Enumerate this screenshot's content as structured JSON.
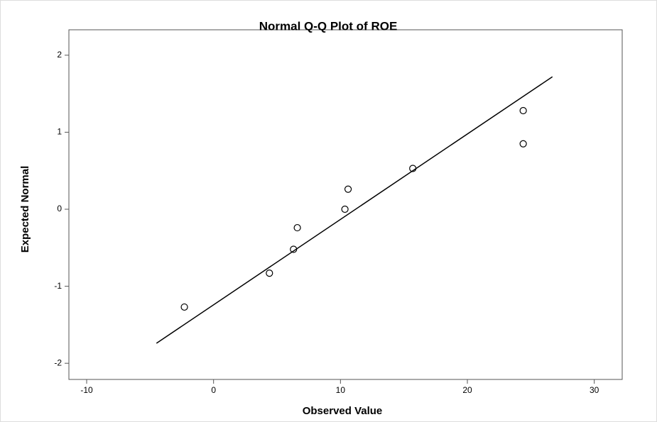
{
  "chart_data": {
    "type": "scatter",
    "title": "Normal Q-Q Plot of ROE",
    "xlabel": "Observed Value",
    "ylabel": "Expected Normal",
    "series": [
      {
        "name": "ROE",
        "color": "#000000",
        "x": [
          -2.3,
          4.4,
          6.3,
          6.6,
          10.35,
          10.6,
          15.7,
          24.4,
          24.4
        ],
        "values": [
          -1.27,
          -0.83,
          -0.52,
          -0.24,
          0,
          0.26,
          0.53,
          1.28,
          0.85
        ]
      }
    ],
    "reference_line": {
      "x": [
        -4.5,
        26.7
      ],
      "y": [
        -1.74,
        1.72
      ],
      "color": "#000000"
    },
    "xlim": [
      -11.4,
      32.2
    ],
    "xticks": [
      -10,
      0,
      10,
      20,
      30
    ],
    "ylim": [
      -2.21,
      2.33
    ],
    "yticks": [
      -2,
      -1,
      0,
      1,
      2
    ]
  }
}
